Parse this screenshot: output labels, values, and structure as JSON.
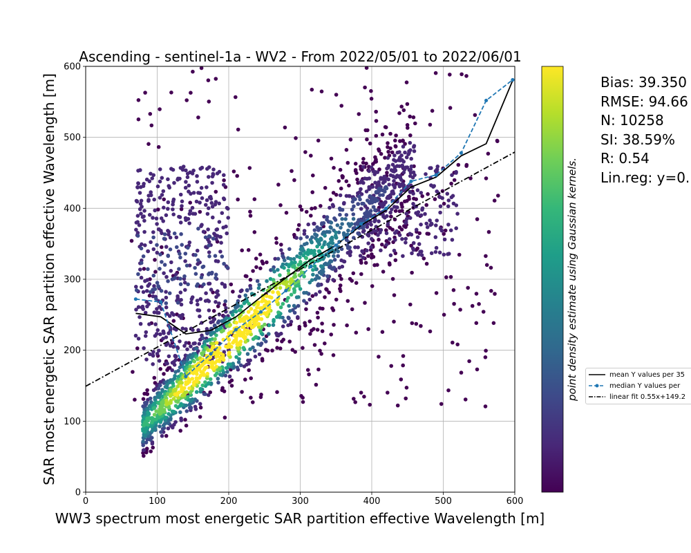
{
  "chart_data": {
    "type": "scatter",
    "title": "Ascending - sentinel-1a - WV2 - From 2022/05/01 to 2022/06/01",
    "xlabel": "WW3 spectrum most energetic SAR partition effective Wavelength [m]",
    "ylabel": "SAR most energetic SAR partition effective Wavelength [m]",
    "xlim": [
      0,
      600
    ],
    "ylim": [
      0,
      600
    ],
    "xticks": [
      "0",
      "100",
      "200",
      "300",
      "400",
      "500",
      "600"
    ],
    "yticks": [
      "0",
      "100",
      "200",
      "300",
      "400",
      "500",
      "600"
    ],
    "grid": true,
    "colorbar": {
      "label": "point density estimate using Gaussian kernels.",
      "colormap": "viridis",
      "colors": [
        "#440154",
        "#482878",
        "#3e4989",
        "#31688e",
        "#26828e",
        "#1f9e89",
        "#35b779",
        "#6ece58",
        "#b5de2b",
        "#fde725"
      ]
    },
    "stats": [
      "Bias: 39.350",
      "RMSE: 94.66",
      "N: 10258",
      "SI: 38.59%",
      "R: 0.54",
      "Lin.reg: y=0."
    ],
    "legend": {
      "position": "right",
      "entries": [
        {
          "label": "mean Y values per 35",
          "style": "solid",
          "color": "#000000"
        },
        {
          "label": "median Y values per",
          "style": "dashed-marker",
          "color": "#1f77b4"
        },
        {
          "label": "linear fit 0.55x+149.2",
          "style": "dashdot",
          "color": "#000000"
        }
      ]
    },
    "series": [
      {
        "name": "mean Y values per 35",
        "x": [
          70,
          105,
          140,
          175,
          210,
          245,
          280,
          315,
          350,
          385,
          420,
          455,
          490,
          525,
          560,
          597
        ],
        "y": [
          252,
          247,
          223,
          228,
          247,
          275,
          302,
          328,
          348,
          376,
          397,
          430,
          444,
          474,
          491,
          580
        ]
      },
      {
        "name": "median Y values per",
        "x": [
          70,
          105,
          140,
          175,
          210,
          245,
          280,
          315,
          350,
          385,
          420,
          455,
          490,
          525,
          560,
          597
        ],
        "y": [
          272,
          268,
          163,
          195,
          229,
          254,
          284,
          318,
          348,
          378,
          400,
          438,
          447,
          478,
          552,
          581
        ]
      },
      {
        "name": "linear fit 0.55x+149.2",
        "x": [
          0,
          600
        ],
        "y": [
          149.2,
          479.2
        ]
      }
    ]
  }
}
